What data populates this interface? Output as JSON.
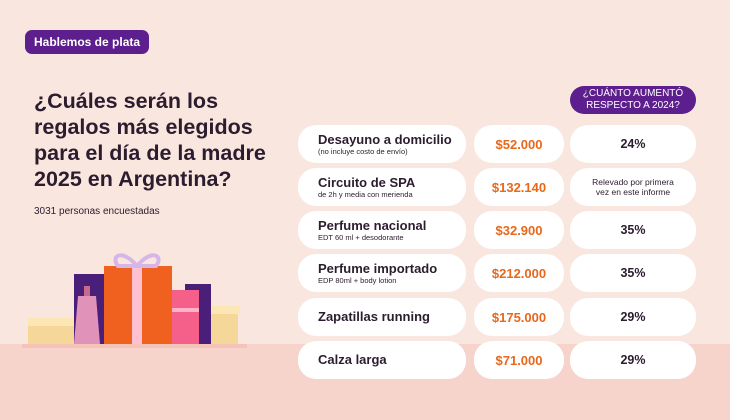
{
  "badge": "Hablemos de plata",
  "title": "¿Cuáles serán los regalos más elegidos para el  día de la madre 2025 en Argentina?",
  "subtitle": "3031 personas encuestadas",
  "column_header": {
    "line1": "¿CUÁNTO AUMENTÓ",
    "line2": "RESPECTO A 2024?"
  },
  "rows": [
    {
      "name": "Desayuno a domicilio",
      "detail": "(no incluye costo de envío)",
      "price": "$52.000",
      "increase": "24%"
    },
    {
      "name": "Circuito de SPA",
      "detail": "de 2h y media con merienda",
      "price": "$132.140",
      "increase_line1": "Relevado por primera",
      "increase_line2": "vez en este informe"
    },
    {
      "name": "Perfume nacional",
      "detail": "EDT 60 ml + desodorante",
      "price": "$32.900",
      "increase": "35%"
    },
    {
      "name": "Perfume importado",
      "detail": "EDP 80ml + body lotion",
      "price": "$212.000",
      "increase": "35%"
    },
    {
      "name": "Zapatillas running",
      "detail": "",
      "price": "$175.000",
      "increase": "29%"
    },
    {
      "name": "Calza larga",
      "detail": "",
      "price": "$71.000",
      "increase": "29%"
    }
  ],
  "colors": {
    "purple": "#5d1f8d",
    "orange_price": "#e8671a",
    "background": "#f9e6df",
    "card": "#ffffff"
  },
  "illustration": "gift-boxes-and-perfume-icon"
}
